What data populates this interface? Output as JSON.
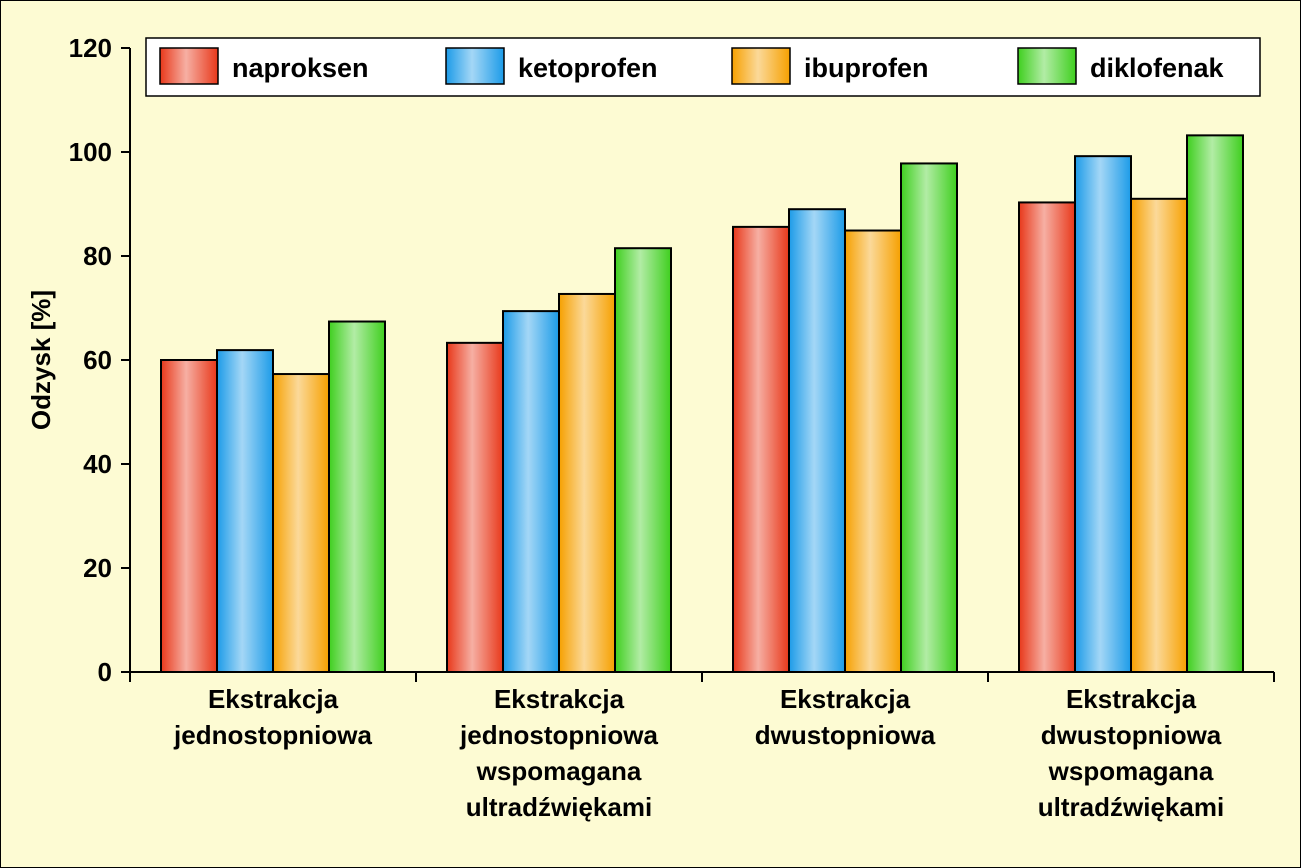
{
  "chart_data": {
    "type": "bar",
    "ylabel": "Odzysk [%]",
    "ylim": [
      0,
      120
    ],
    "yticks": [
      0,
      20,
      40,
      60,
      80,
      100,
      120
    ],
    "categories": [
      [
        "Ekstrakcja",
        "jednostopniowa"
      ],
      [
        "Ekstrakcja",
        "jednostopniowa",
        "wspomagana",
        "ultradźwiękami"
      ],
      [
        "Ekstrakcja",
        "dwustopniowa"
      ],
      [
        "Ekstrakcja",
        "dwustopniowa",
        "wspomagana",
        "ultradźwiękami"
      ]
    ],
    "series": [
      {
        "name": "naproksen",
        "values": [
          60,
          63.3,
          85.6,
          90.3
        ],
        "color": "#e8381a"
      },
      {
        "name": "ketoprofen",
        "values": [
          61.9,
          69.4,
          89,
          99.2
        ],
        "color": "#1c9be8"
      },
      {
        "name": "ibuprofen",
        "values": [
          57.3,
          72.7,
          84.9,
          91
        ],
        "color": "#f6a000"
      },
      {
        "name": "diklofenak",
        "values": [
          67.4,
          81.5,
          97.8,
          103.2
        ],
        "color": "#3fcf1f"
      }
    ],
    "legend_position": "top",
    "grid": false
  }
}
